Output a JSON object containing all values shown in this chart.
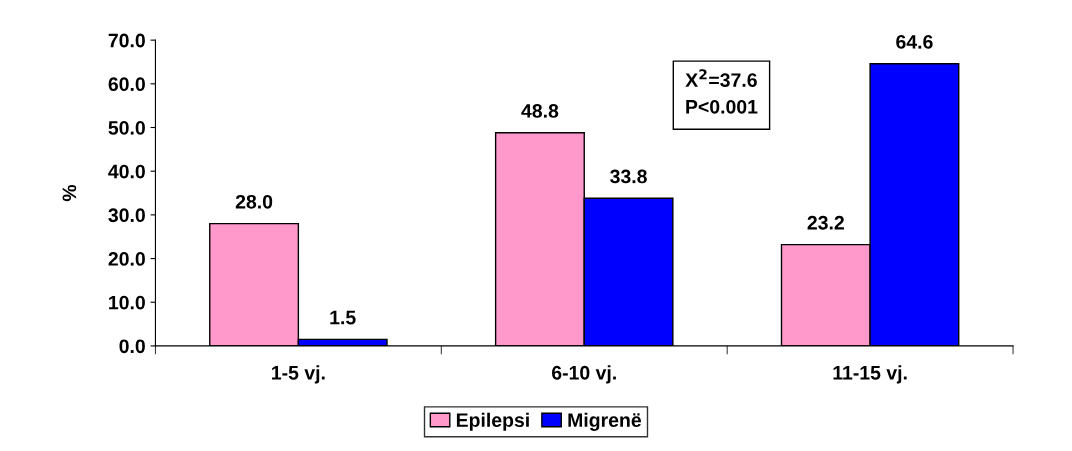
{
  "chart_data": {
    "type": "bar",
    "categories": [
      "1-5 vj.",
      "6-10 vj.",
      "11-15 vj."
    ],
    "ylabel": "%",
    "series": [
      {
        "name": "Epilepsi",
        "color": "#ff99cc",
        "values": [
          28.0,
          48.8,
          23.2
        ],
        "value_labels": [
          "28.0",
          "48.8",
          "23.2"
        ]
      },
      {
        "name": "Migrenë",
        "color": "#0000ff",
        "values": [
          1.5,
          33.8,
          64.6
        ],
        "value_labels": [
          "1.5",
          "33.8",
          "64.6"
        ]
      }
    ],
    "ylim": [
      0,
      70
    ],
    "yticks": [
      {
        "value": 0,
        "label": "0.0"
      },
      {
        "value": 10,
        "label": "10.0"
      },
      {
        "value": 20,
        "label": "20.0"
      },
      {
        "value": 30,
        "label": "30.0"
      },
      {
        "value": 40,
        "label": "40.0"
      },
      {
        "value": 50,
        "label": "50.0"
      },
      {
        "value": 60,
        "label": "60.0"
      },
      {
        "value": 70,
        "label": "70.0"
      }
    ],
    "annotations": [
      "X$^{2}$=37.6\nP<0.001"
    ],
    "legend": "bottom",
    "grid": false
  }
}
